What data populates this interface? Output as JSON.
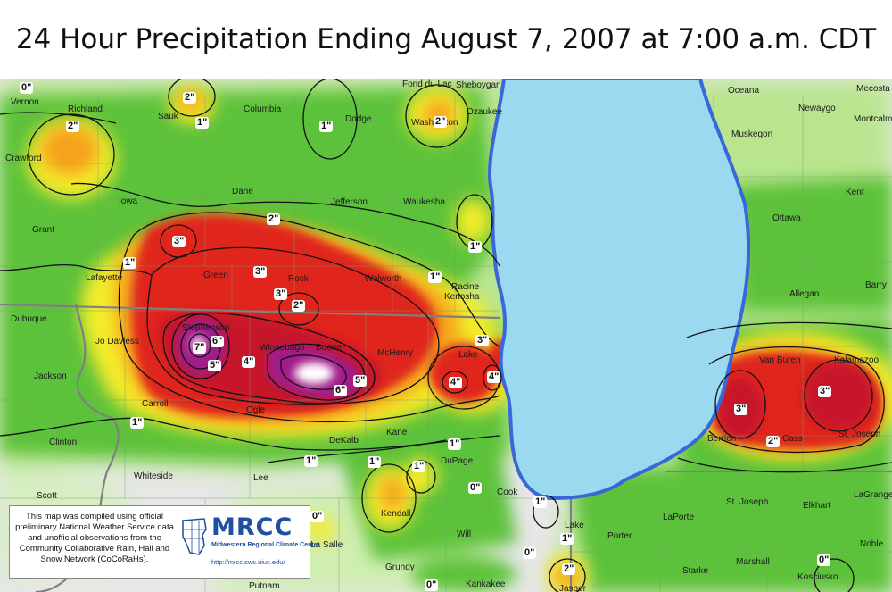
{
  "title": "24 Hour Precipitation Ending August 7, 2007 at 7:00 a.m. CDT",
  "colors": {
    "lake": "#9bd9f0",
    "lake_shore": "#3a67d8",
    "gray_base": "#e7e7e7",
    "light_green": "#b9e58f",
    "green": "#5dc23a",
    "yellow": "#f4ec2b",
    "orange": "#f5a21f",
    "red": "#e0271e",
    "dark_red": "#c7142a",
    "purple": "#a01d8a",
    "white_core": "#ffffff"
  },
  "counties": [
    {
      "name": "Vernon"
    },
    {
      "name": "Richland"
    },
    {
      "name": "Sauk"
    },
    {
      "name": "Columbia"
    },
    {
      "name": "Dodge"
    },
    {
      "name": "Fond du Lac"
    },
    {
      "name": "Sheboygan"
    },
    {
      "name": "Washington"
    },
    {
      "name": "Ozaukee"
    },
    {
      "name": "Crawford"
    },
    {
      "name": "Iowa"
    },
    {
      "name": "Dane"
    },
    {
      "name": "Jefferson"
    },
    {
      "name": "Waukesha"
    },
    {
      "name": "Grant"
    },
    {
      "name": "Lafayette"
    },
    {
      "name": "Green"
    },
    {
      "name": "Rock"
    },
    {
      "name": "Walworth"
    },
    {
      "name": "Racine"
    },
    {
      "name": "Kenosha"
    },
    {
      "name": "Dubuque"
    },
    {
      "name": "Jo Daviess"
    },
    {
      "name": "Stephenson"
    },
    {
      "name": "Winnebago"
    },
    {
      "name": "Boone"
    },
    {
      "name": "McHenry"
    },
    {
      "name": "Lake"
    },
    {
      "name": "Jackson"
    },
    {
      "name": "Carroll"
    },
    {
      "name": "Ogle"
    },
    {
      "name": "DeKalb"
    },
    {
      "name": "Kane"
    },
    {
      "name": "DuPage"
    },
    {
      "name": "Clinton"
    },
    {
      "name": "Whiteside"
    },
    {
      "name": "Lee"
    },
    {
      "name": "Cook"
    },
    {
      "name": "Scott"
    },
    {
      "name": "Kendall"
    },
    {
      "name": "Will"
    },
    {
      "name": "La Salle"
    },
    {
      "name": "Grundy"
    },
    {
      "name": "Kankakee"
    },
    {
      "name": "Putnam"
    },
    {
      "name": "Lake"
    },
    {
      "name": "Porter"
    },
    {
      "name": "LaPorte"
    },
    {
      "name": "Starke"
    },
    {
      "name": "Marshall"
    },
    {
      "name": "Kosciusko"
    },
    {
      "name": "Noble"
    },
    {
      "name": "LaGrange"
    },
    {
      "name": "Elkhart"
    },
    {
      "name": "St. Joseph"
    },
    {
      "name": "Cass"
    },
    {
      "name": "Berrien"
    },
    {
      "name": "St. Joseph"
    },
    {
      "name": "Van Buren"
    },
    {
      "name": "Kalamazoo"
    },
    {
      "name": "Allegan"
    },
    {
      "name": "Barry"
    },
    {
      "name": "Ottawa"
    },
    {
      "name": "Kent"
    },
    {
      "name": "Muskegon"
    },
    {
      "name": "Oceana"
    },
    {
      "name": "Newaygo"
    },
    {
      "name": "Mecosta"
    },
    {
      "name": "Montcalm"
    },
    {
      "name": "Jasper"
    }
  ],
  "isohyet_labels": [
    {
      "text": "0\""
    },
    {
      "text": "2\""
    },
    {
      "text": "1\""
    },
    {
      "text": "2\""
    },
    {
      "text": "1\""
    },
    {
      "text": "2\""
    },
    {
      "text": "1\""
    },
    {
      "text": "3\""
    },
    {
      "text": "2\""
    },
    {
      "text": "1\""
    },
    {
      "text": "3\""
    },
    {
      "text": "3\""
    },
    {
      "text": "2\""
    },
    {
      "text": "1\""
    },
    {
      "text": "7\""
    },
    {
      "text": "6\""
    },
    {
      "text": "5\""
    },
    {
      "text": "4\""
    },
    {
      "text": "6\""
    },
    {
      "text": "5\""
    },
    {
      "text": "3\""
    },
    {
      "text": "4\""
    },
    {
      "text": "4\""
    },
    {
      "text": "1\""
    },
    {
      "text": "1\""
    },
    {
      "text": "1\""
    },
    {
      "text": "1\""
    },
    {
      "text": "1\""
    },
    {
      "text": "0\""
    },
    {
      "text": "1\""
    },
    {
      "text": "1\""
    },
    {
      "text": "0\""
    },
    {
      "text": "2\""
    },
    {
      "text": "0\""
    },
    {
      "text": "3\""
    },
    {
      "text": "3\""
    },
    {
      "text": "2\""
    },
    {
      "text": "0\""
    },
    {
      "text": "0\""
    }
  ],
  "info_box": {
    "text": "This map was compiled using official preliminary National Weather Service data and unofficial observations from the Community Collaborative Rain, Hail and Snow Network (CoCoRaHs).",
    "logo_name": "MRCC",
    "logo_subtitle": "Midwestern Regional Climate Center",
    "logo_url": "http://mrcc.sws.uiuc.edu/",
    "logo_icon": "midwest-states-icon"
  }
}
